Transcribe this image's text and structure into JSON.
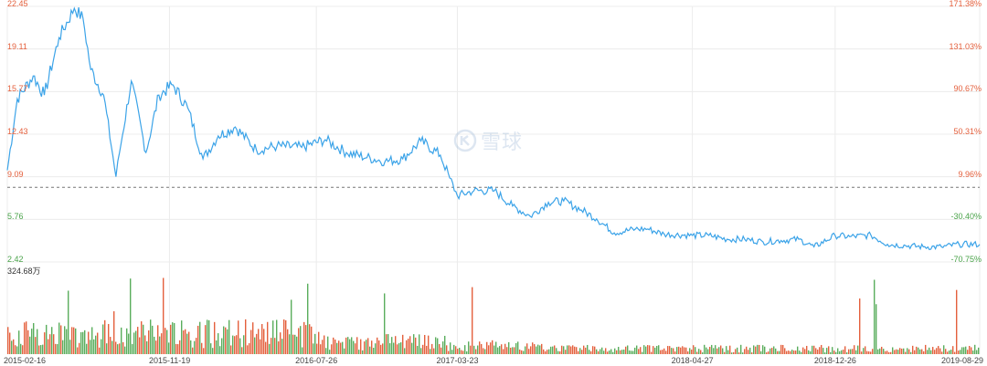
{
  "watermark": "雪球",
  "colors": {
    "price_line": "#3ba3e8",
    "up": "#e4603d",
    "down": "#5aad5c",
    "grid": "#ececec",
    "axis_red": "#e4603d",
    "axis_green": "#4aa34a"
  },
  "chart_data": {
    "type": "line",
    "price_axis": {
      "labels": [
        "22.45",
        "19.11",
        "15.77",
        "12.43",
        "9.09",
        "5.76",
        "2.42"
      ],
      "ylim": [
        2.42,
        22.45
      ]
    },
    "pct_axis": {
      "labels": [
        "171.38%",
        "131.03%",
        "90.67%",
        "50.31%",
        "9.96%",
        "-30.40%",
        "-70.75%"
      ]
    },
    "reference_price": 8.27,
    "x_labels": [
      "2015-02-16",
      "2015-11-19",
      "2016-07-26",
      "2017-03-23",
      "2018-04-27",
      "2018-12-26",
      "2019-08-29"
    ],
    "x_range": [
      "2015-02-16",
      "2019-08-29"
    ],
    "price_series": {
      "x": [
        "2015-02-16",
        "2015-03-05",
        "2015-04-01",
        "2015-04-20",
        "2015-05-15",
        "2015-06-10",
        "2015-06-25",
        "2015-07-08",
        "2015-07-30",
        "2015-08-20",
        "2015-08-26",
        "2015-09-15",
        "2015-10-10",
        "2015-11-01",
        "2015-11-25",
        "2015-12-20",
        "2016-01-15",
        "2016-02-10",
        "2016-03-10",
        "2016-04-15",
        "2016-05-20",
        "2016-07-01",
        "2016-08-10",
        "2016-09-15",
        "2016-10-20",
        "2016-11-20",
        "2016-12-20",
        "2017-01-20",
        "2017-02-22",
        "2017-03-10",
        "2017-03-23",
        "2017-04-20",
        "2017-05-25",
        "2017-06-25",
        "2017-07-25",
        "2017-08-25",
        "2017-09-20",
        "2017-10-20",
        "2017-11-15",
        "2017-12-15",
        "2018-01-20",
        "2018-02-10",
        "2018-03-10",
        "2018-04-27",
        "2018-05-25",
        "2018-06-25",
        "2018-07-25",
        "2018-08-25",
        "2018-09-25",
        "2018-10-25",
        "2018-11-20",
        "2018-12-26",
        "2019-01-20",
        "2019-02-25",
        "2019-03-25",
        "2019-04-25",
        "2019-05-25",
        "2019-06-25",
        "2019-07-25",
        "2019-08-29"
      ],
      "y": [
        9.6,
        15.2,
        17.0,
        15.5,
        20.0,
        22.3,
        21.5,
        17.5,
        15.5,
        9.1,
        11.0,
        16.6,
        11.0,
        15.5,
        16.3,
        14.5,
        10.5,
        12.3,
        13.0,
        11.2,
        11.5,
        11.4,
        12.0,
        11.0,
        10.6,
        10.3,
        10.5,
        11.9,
        10.8,
        9.0,
        7.6,
        8.0,
        8.0,
        6.8,
        6.0,
        7.1,
        7.2,
        6.5,
        5.8,
        4.7,
        5.0,
        5.0,
        4.6,
        4.5,
        4.5,
        4.2,
        4.2,
        4.0,
        4.1,
        4.2,
        3.6,
        4.5,
        4.4,
        4.5,
        3.8,
        3.7,
        3.6,
        3.6,
        3.8,
        3.8
      ]
    },
    "volume": {
      "max_label": "324.68万",
      "ymax": 324.68,
      "unit": "万"
    }
  }
}
